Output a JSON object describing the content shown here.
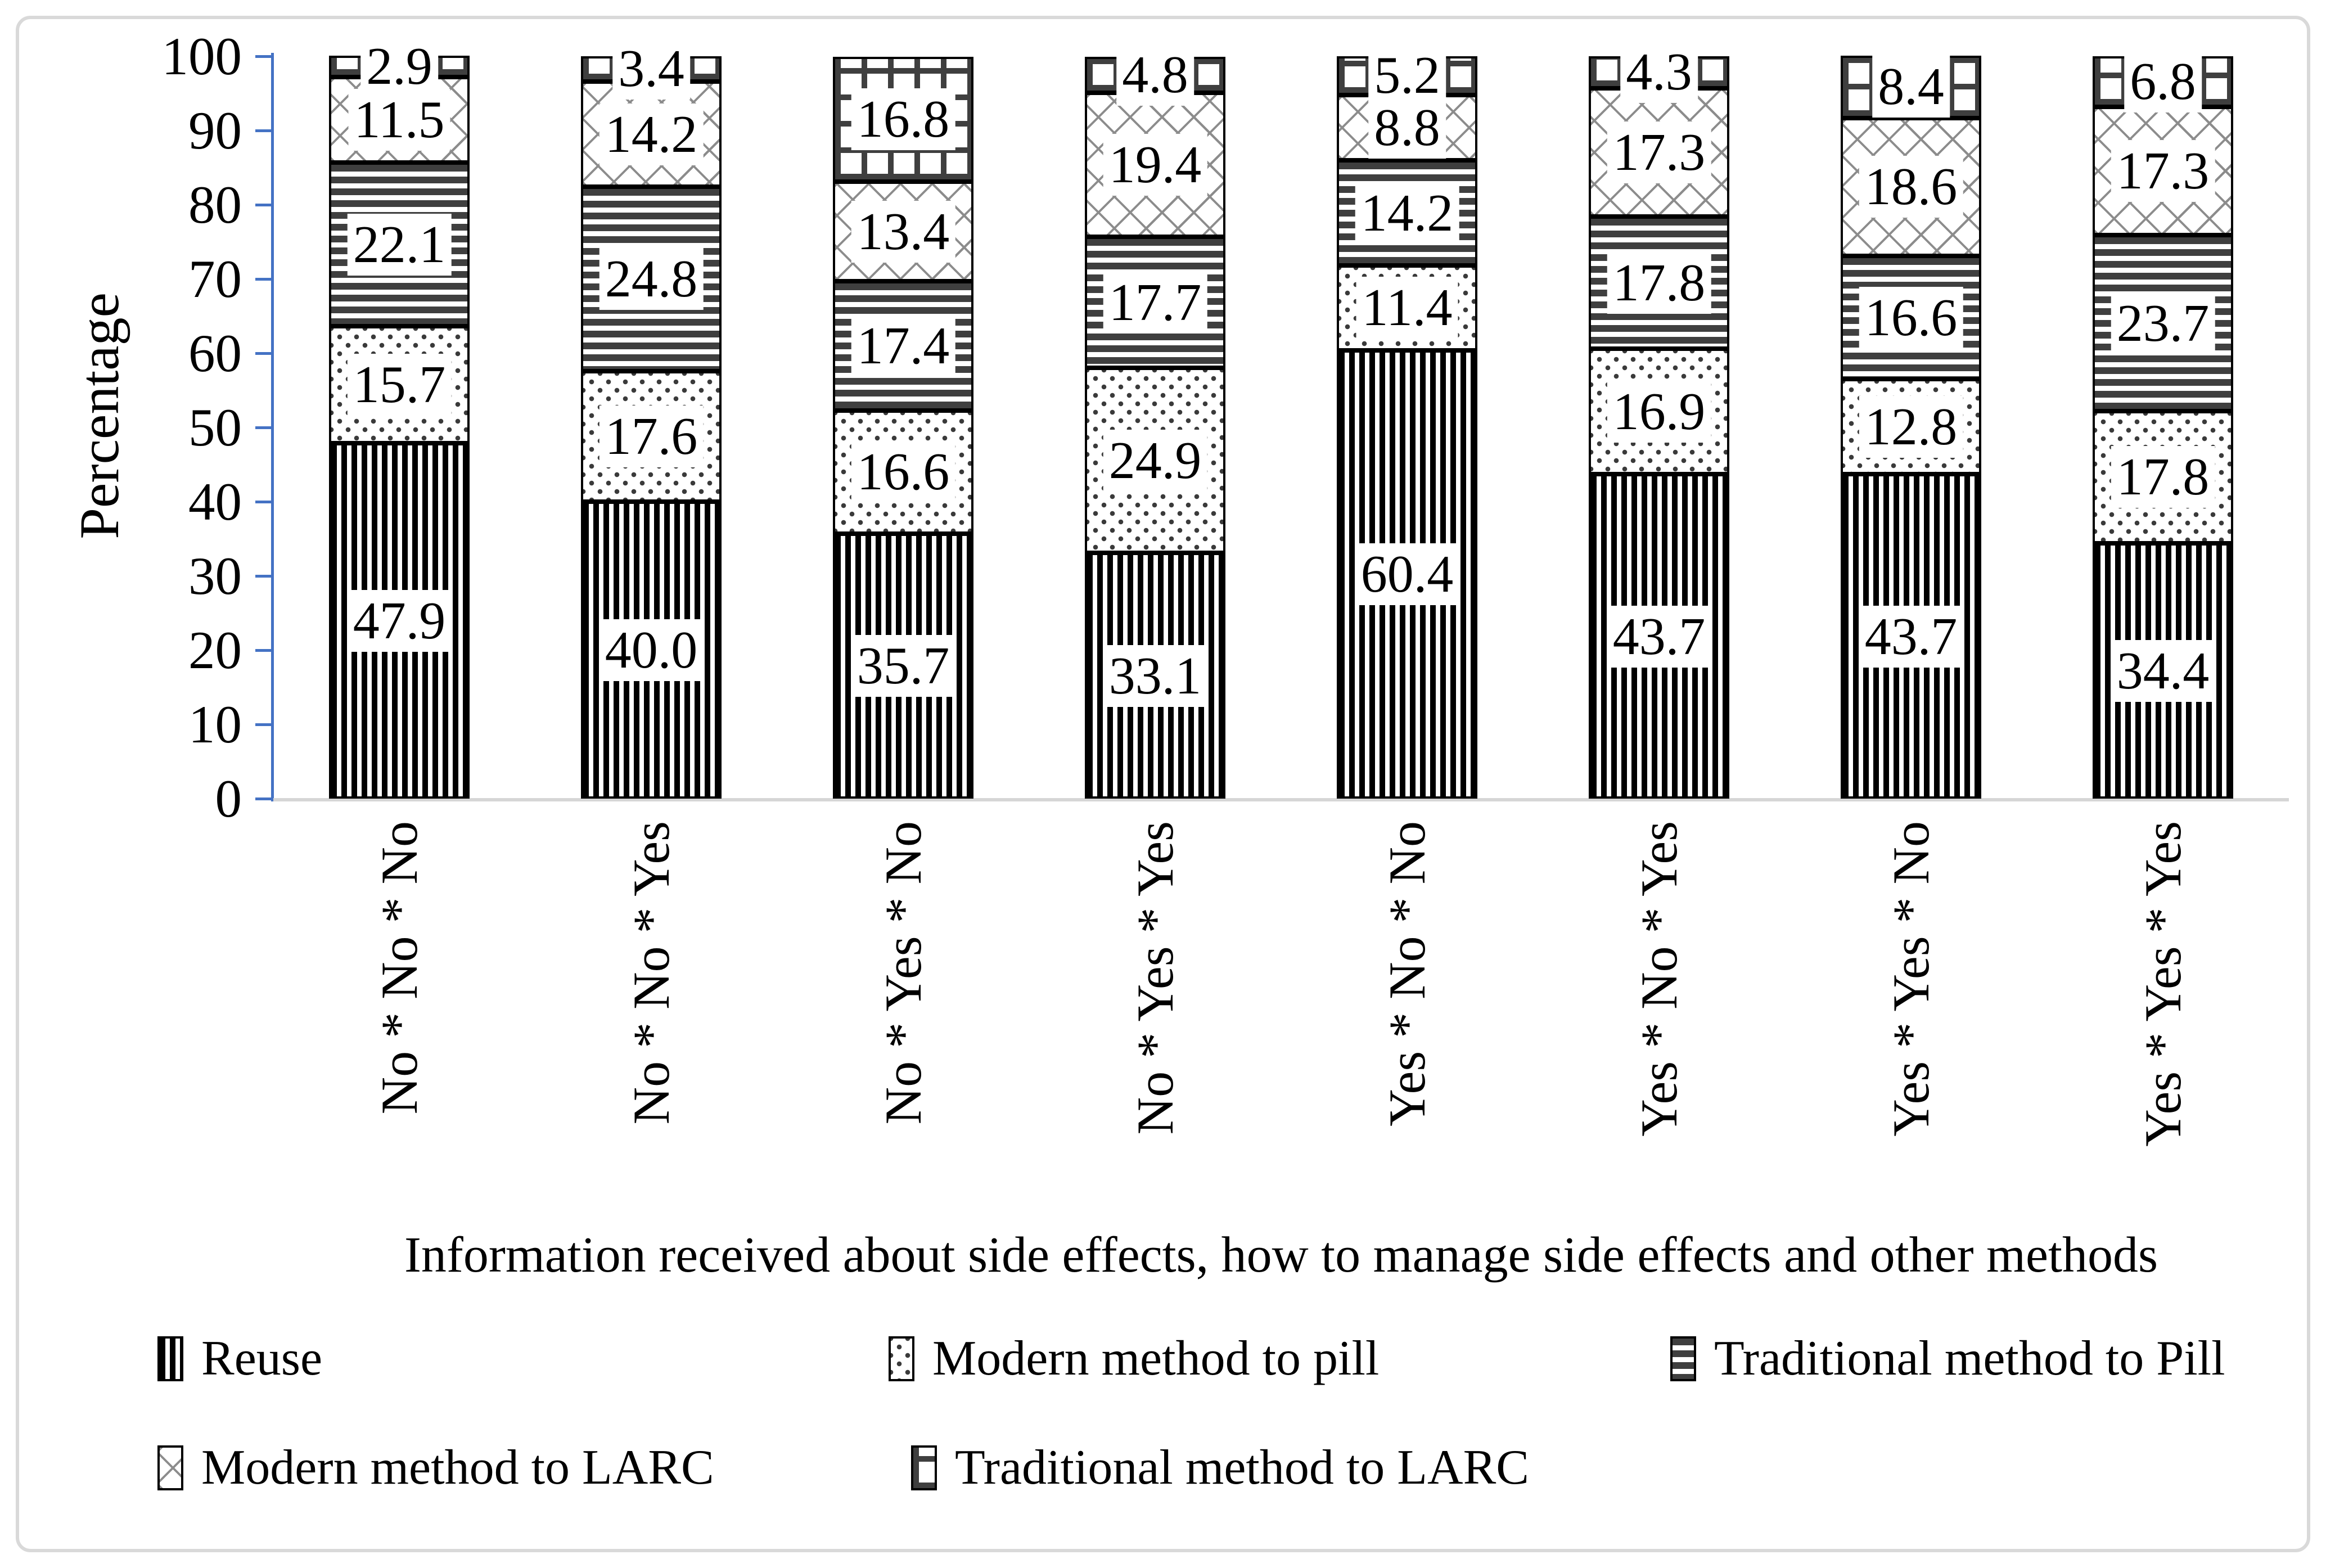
{
  "chart_data": {
    "type": "bar",
    "stacked": true,
    "percent_stacked": true,
    "title": "",
    "xlabel": "Information received about side effects, how to manage side effects and other methods",
    "ylabel": "Percentage",
    "ylim": [
      0,
      100
    ],
    "yticks": [
      0,
      10,
      20,
      30,
      40,
      50,
      60,
      70,
      80,
      90,
      100
    ],
    "grid": false,
    "legend_position": "bottom",
    "legend_rows": [
      [
        0,
        1,
        2
      ],
      [
        3,
        4
      ]
    ],
    "categories": [
      "No * No * No",
      "No * No * Yes",
      "No * Yes * No",
      "No * Yes * Yes",
      "Yes * No * No",
      "Yes * No * Yes",
      "Yes * Yes * No",
      "Yes * Yes * Yes"
    ],
    "series": [
      {
        "name": "Reuse",
        "pattern": "vstripe",
        "values": [
          47.9,
          40.0,
          35.7,
          33.1,
          60.4,
          43.7,
          43.7,
          34.4
        ]
      },
      {
        "name": "Modern method to pill",
        "pattern": "dots",
        "values": [
          15.7,
          17.6,
          16.6,
          24.9,
          11.4,
          16.9,
          12.8,
          17.8
        ]
      },
      {
        "name": "Traditional method to Pill",
        "pattern": "hstripe",
        "values": [
          22.1,
          24.8,
          17.4,
          17.7,
          14.2,
          17.8,
          16.6,
          23.7
        ]
      },
      {
        "name": "Modern method to LARC",
        "pattern": "crosshatch",
        "values": [
          11.5,
          14.2,
          13.4,
          19.4,
          8.8,
          17.3,
          18.6,
          17.3
        ]
      },
      {
        "name": "Traditional method to LARC",
        "pattern": "grid",
        "values": [
          2.9,
          3.4,
          16.8,
          4.8,
          5.2,
          4.3,
          8.4,
          6.8
        ]
      }
    ]
  },
  "colors": {
    "y_axis": "#4472C4",
    "x_axis": "#D6D6D6",
    "figure_border": "#D9D9D9",
    "text": "#000000",
    "label_background": "#FFFFFF"
  }
}
